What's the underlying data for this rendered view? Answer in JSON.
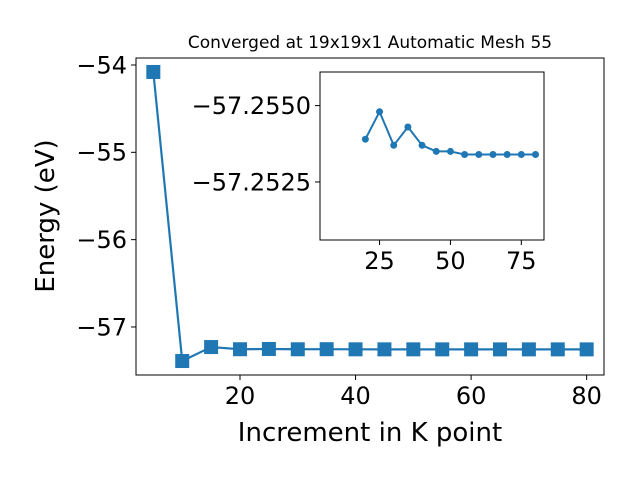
{
  "chart_data": [
    {
      "type": "line",
      "title": "Converged at 19x19x1 Automatic Mesh 55",
      "xlabel": "Increment in K point",
      "ylabel": "Energy (eV)",
      "xticks": [
        "20",
        "40",
        "60",
        "80"
      ],
      "yticks": [
        "−54",
        "−55",
        "−56",
        "−57"
      ],
      "xlim": [
        2,
        83
      ],
      "ylim": [
        -57.55,
        -53.92
      ],
      "marker": "square",
      "color": "#1f77b4",
      "grid": false,
      "series": [
        {
          "x": [
            5,
            10,
            15,
            20,
            25,
            30,
            35,
            40,
            45,
            50,
            55,
            60,
            65,
            70,
            75,
            80
          ],
          "y": [
            -54.08,
            -57.39,
            -57.23,
            -57.255,
            -57.252,
            -57.2555,
            -57.2545,
            -57.256,
            -57.2562,
            -57.2562,
            -57.2564,
            -57.2565,
            -57.2565,
            -57.2565,
            -57.2565,
            -57.2565
          ]
        }
      ]
    },
    {
      "type": "line",
      "title": "",
      "xlabel": "",
      "ylabel": "",
      "xticks": [
        "25",
        "50",
        "75"
      ],
      "yticks": [
        "−57.2550",
        "−57.2525"
      ],
      "xlim": [
        4,
        83
      ],
      "ylim": [
        -57.2506,
        -57.2561
      ],
      "marker": "circle",
      "color": "#1f77b4",
      "grid": false,
      "series": [
        {
          "x": [
            20,
            25,
            30,
            35,
            40,
            45,
            50,
            55,
            60,
            65,
            70,
            75,
            80
          ],
          "y": [
            -57.2539,
            -57.2548,
            -57.2537,
            -57.2543,
            -57.2537,
            -57.2535,
            -57.2535,
            -57.2534,
            -57.2534,
            -57.2534,
            -57.2534,
            -57.2534,
            -57.2534
          ]
        }
      ]
    }
  ]
}
